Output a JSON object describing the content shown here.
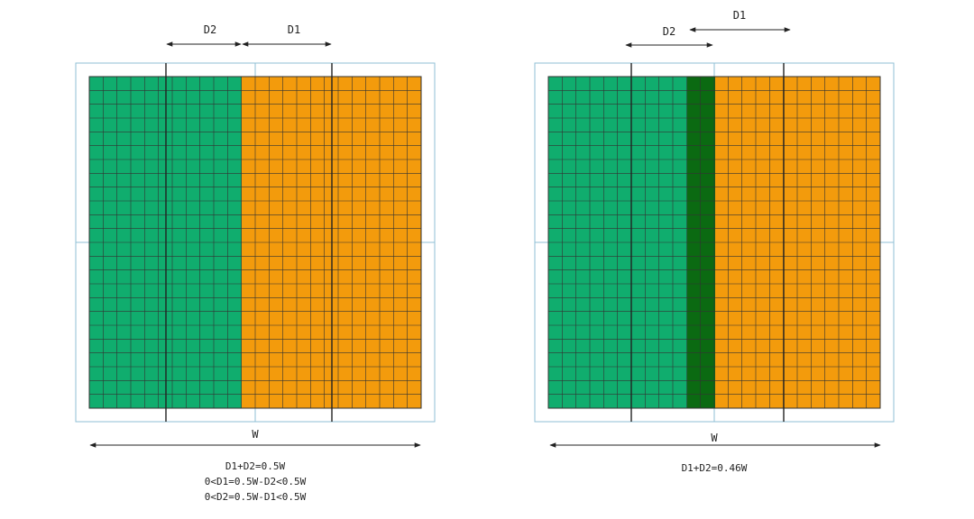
{
  "colors": {
    "green": "#10ad6e",
    "dark_green": "#0b6a12",
    "orange": "#f39b0c",
    "grid_line": "#333333",
    "frame": "#8fbfd4",
    "line": "#222222"
  },
  "left_panel": {
    "d2_label": "D2",
    "d1_label": "D1",
    "w_label": "W",
    "notes": [
      "D1+D2=0.5W",
      "0<D1=0.5W-D2<0.5W",
      "0<D2=0.5W-D1<0.5W"
    ]
  },
  "right_panel": {
    "d2_label": "D2",
    "d1_label": "D1",
    "w_label": "W",
    "notes": [
      "D1+D2=0.46W"
    ]
  }
}
